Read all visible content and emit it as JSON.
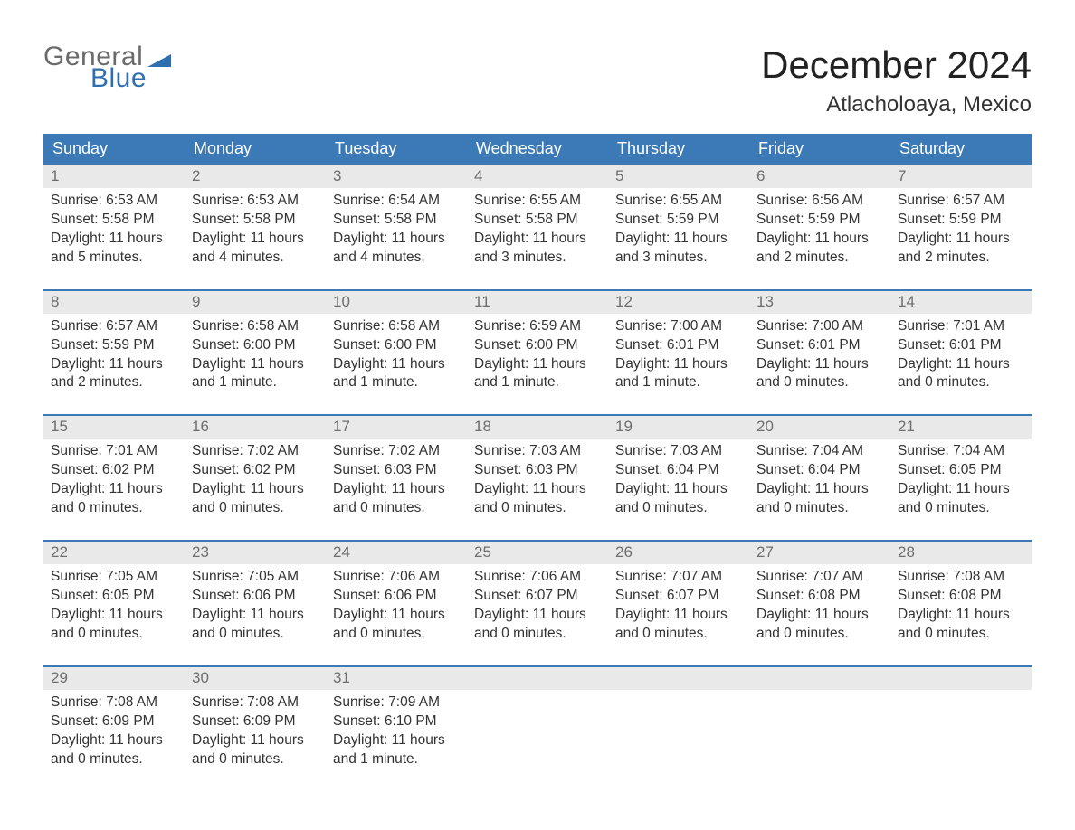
{
  "brand": {
    "name_gray": "General",
    "name_blue": "Blue",
    "flag_color": "#2f6fb0"
  },
  "title": "December 2024",
  "subtitle": "Atlacholoaya, Mexico",
  "colors": {
    "header_bg": "#3b79b7",
    "header_text": "#ffffff",
    "week_border": "#3b79b7",
    "daynum_bg": "#e9e9e9",
    "daynum_text": "#6e6e6e",
    "body_text": "#333333",
    "background": "#ffffff",
    "logo_gray": "#6b6b6b",
    "logo_blue": "#2f6fb0"
  },
  "typography": {
    "title_fontsize": 42,
    "subtitle_fontsize": 24,
    "dow_fontsize": 18,
    "daynum_fontsize": 17,
    "cell_fontsize": 15.5,
    "logo_fontsize": 30
  },
  "days_of_week": [
    "Sunday",
    "Monday",
    "Tuesday",
    "Wednesday",
    "Thursday",
    "Friday",
    "Saturday"
  ],
  "weeks": [
    [
      {
        "d": "1",
        "sunrise": "Sunrise: 6:53 AM",
        "sunset": "Sunset: 5:58 PM",
        "dl1": "Daylight: 11 hours",
        "dl2": "and 5 minutes."
      },
      {
        "d": "2",
        "sunrise": "Sunrise: 6:53 AM",
        "sunset": "Sunset: 5:58 PM",
        "dl1": "Daylight: 11 hours",
        "dl2": "and 4 minutes."
      },
      {
        "d": "3",
        "sunrise": "Sunrise: 6:54 AM",
        "sunset": "Sunset: 5:58 PM",
        "dl1": "Daylight: 11 hours",
        "dl2": "and 4 minutes."
      },
      {
        "d": "4",
        "sunrise": "Sunrise: 6:55 AM",
        "sunset": "Sunset: 5:58 PM",
        "dl1": "Daylight: 11 hours",
        "dl2": "and 3 minutes."
      },
      {
        "d": "5",
        "sunrise": "Sunrise: 6:55 AM",
        "sunset": "Sunset: 5:59 PM",
        "dl1": "Daylight: 11 hours",
        "dl2": "and 3 minutes."
      },
      {
        "d": "6",
        "sunrise": "Sunrise: 6:56 AM",
        "sunset": "Sunset: 5:59 PM",
        "dl1": "Daylight: 11 hours",
        "dl2": "and 2 minutes."
      },
      {
        "d": "7",
        "sunrise": "Sunrise: 6:57 AM",
        "sunset": "Sunset: 5:59 PM",
        "dl1": "Daylight: 11 hours",
        "dl2": "and 2 minutes."
      }
    ],
    [
      {
        "d": "8",
        "sunrise": "Sunrise: 6:57 AM",
        "sunset": "Sunset: 5:59 PM",
        "dl1": "Daylight: 11 hours",
        "dl2": "and 2 minutes."
      },
      {
        "d": "9",
        "sunrise": "Sunrise: 6:58 AM",
        "sunset": "Sunset: 6:00 PM",
        "dl1": "Daylight: 11 hours",
        "dl2": "and 1 minute."
      },
      {
        "d": "10",
        "sunrise": "Sunrise: 6:58 AM",
        "sunset": "Sunset: 6:00 PM",
        "dl1": "Daylight: 11 hours",
        "dl2": "and 1 minute."
      },
      {
        "d": "11",
        "sunrise": "Sunrise: 6:59 AM",
        "sunset": "Sunset: 6:00 PM",
        "dl1": "Daylight: 11 hours",
        "dl2": "and 1 minute."
      },
      {
        "d": "12",
        "sunrise": "Sunrise: 7:00 AM",
        "sunset": "Sunset: 6:01 PM",
        "dl1": "Daylight: 11 hours",
        "dl2": "and 1 minute."
      },
      {
        "d": "13",
        "sunrise": "Sunrise: 7:00 AM",
        "sunset": "Sunset: 6:01 PM",
        "dl1": "Daylight: 11 hours",
        "dl2": "and 0 minutes."
      },
      {
        "d": "14",
        "sunrise": "Sunrise: 7:01 AM",
        "sunset": "Sunset: 6:01 PM",
        "dl1": "Daylight: 11 hours",
        "dl2": "and 0 minutes."
      }
    ],
    [
      {
        "d": "15",
        "sunrise": "Sunrise: 7:01 AM",
        "sunset": "Sunset: 6:02 PM",
        "dl1": "Daylight: 11 hours",
        "dl2": "and 0 minutes."
      },
      {
        "d": "16",
        "sunrise": "Sunrise: 7:02 AM",
        "sunset": "Sunset: 6:02 PM",
        "dl1": "Daylight: 11 hours",
        "dl2": "and 0 minutes."
      },
      {
        "d": "17",
        "sunrise": "Sunrise: 7:02 AM",
        "sunset": "Sunset: 6:03 PM",
        "dl1": "Daylight: 11 hours",
        "dl2": "and 0 minutes."
      },
      {
        "d": "18",
        "sunrise": "Sunrise: 7:03 AM",
        "sunset": "Sunset: 6:03 PM",
        "dl1": "Daylight: 11 hours",
        "dl2": "and 0 minutes."
      },
      {
        "d": "19",
        "sunrise": "Sunrise: 7:03 AM",
        "sunset": "Sunset: 6:04 PM",
        "dl1": "Daylight: 11 hours",
        "dl2": "and 0 minutes."
      },
      {
        "d": "20",
        "sunrise": "Sunrise: 7:04 AM",
        "sunset": "Sunset: 6:04 PM",
        "dl1": "Daylight: 11 hours",
        "dl2": "and 0 minutes."
      },
      {
        "d": "21",
        "sunrise": "Sunrise: 7:04 AM",
        "sunset": "Sunset: 6:05 PM",
        "dl1": "Daylight: 11 hours",
        "dl2": "and 0 minutes."
      }
    ],
    [
      {
        "d": "22",
        "sunrise": "Sunrise: 7:05 AM",
        "sunset": "Sunset: 6:05 PM",
        "dl1": "Daylight: 11 hours",
        "dl2": "and 0 minutes."
      },
      {
        "d": "23",
        "sunrise": "Sunrise: 7:05 AM",
        "sunset": "Sunset: 6:06 PM",
        "dl1": "Daylight: 11 hours",
        "dl2": "and 0 minutes."
      },
      {
        "d": "24",
        "sunrise": "Sunrise: 7:06 AM",
        "sunset": "Sunset: 6:06 PM",
        "dl1": "Daylight: 11 hours",
        "dl2": "and 0 minutes."
      },
      {
        "d": "25",
        "sunrise": "Sunrise: 7:06 AM",
        "sunset": "Sunset: 6:07 PM",
        "dl1": "Daylight: 11 hours",
        "dl2": "and 0 minutes."
      },
      {
        "d": "26",
        "sunrise": "Sunrise: 7:07 AM",
        "sunset": "Sunset: 6:07 PM",
        "dl1": "Daylight: 11 hours",
        "dl2": "and 0 minutes."
      },
      {
        "d": "27",
        "sunrise": "Sunrise: 7:07 AM",
        "sunset": "Sunset: 6:08 PM",
        "dl1": "Daylight: 11 hours",
        "dl2": "and 0 minutes."
      },
      {
        "d": "28",
        "sunrise": "Sunrise: 7:08 AM",
        "sunset": "Sunset: 6:08 PM",
        "dl1": "Daylight: 11 hours",
        "dl2": "and 0 minutes."
      }
    ],
    [
      {
        "d": "29",
        "sunrise": "Sunrise: 7:08 AM",
        "sunset": "Sunset: 6:09 PM",
        "dl1": "Daylight: 11 hours",
        "dl2": "and 0 minutes."
      },
      {
        "d": "30",
        "sunrise": "Sunrise: 7:08 AM",
        "sunset": "Sunset: 6:09 PM",
        "dl1": "Daylight: 11 hours",
        "dl2": "and 0 minutes."
      },
      {
        "d": "31",
        "sunrise": "Sunrise: 7:09 AM",
        "sunset": "Sunset: 6:10 PM",
        "dl1": "Daylight: 11 hours",
        "dl2": "and 1 minute."
      },
      {
        "d": "",
        "sunrise": "",
        "sunset": "",
        "dl1": "",
        "dl2": ""
      },
      {
        "d": "",
        "sunrise": "",
        "sunset": "",
        "dl1": "",
        "dl2": ""
      },
      {
        "d": "",
        "sunrise": "",
        "sunset": "",
        "dl1": "",
        "dl2": ""
      },
      {
        "d": "",
        "sunrise": "",
        "sunset": "",
        "dl1": "",
        "dl2": ""
      }
    ]
  ]
}
